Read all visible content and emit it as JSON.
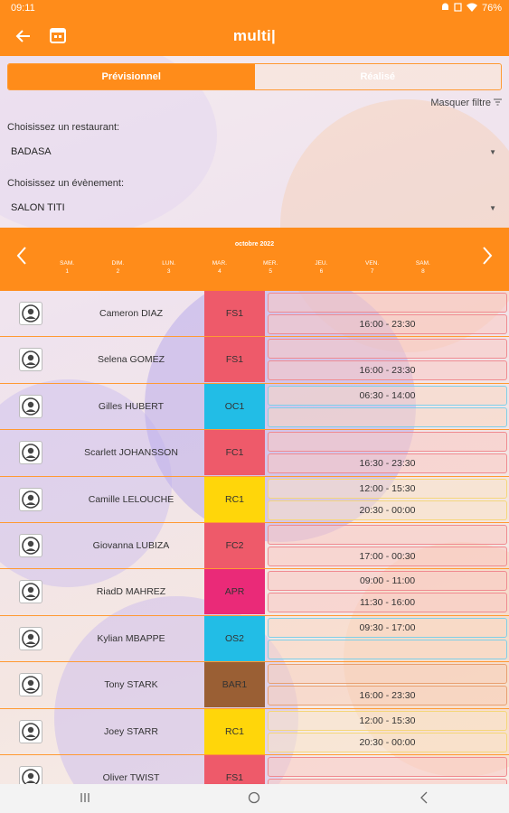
{
  "status_bar": {
    "time": "09:11",
    "battery": "76%"
  },
  "app_bar": {
    "title": "multi|"
  },
  "tabs": [
    {
      "label": "Prévisionnel",
      "active": true
    },
    {
      "label": "Réalisé",
      "active": false
    }
  ],
  "filter_toggle": "Masquer filtre",
  "filters": {
    "restaurant_label": "Choisissez un restaurant:",
    "restaurant_value": "BADASA",
    "event_label": "Choisissez un évènement:",
    "event_value": "SALON TITI"
  },
  "week": {
    "month_label": "octobre 2022",
    "days": [
      {
        "name": "SAM.",
        "num": "1"
      },
      {
        "name": "DIM.",
        "num": "2"
      },
      {
        "name": "LUN.",
        "num": "3"
      },
      {
        "name": "MAR.",
        "num": "4"
      },
      {
        "name": "MER.",
        "num": "5"
      },
      {
        "name": "JEU.",
        "num": "6"
      },
      {
        "name": "VEN.",
        "num": "7"
      },
      {
        "name": "SAM.",
        "num": "8"
      }
    ]
  },
  "colors": {
    "accent": "#ff8c1a",
    "red": "#ee5a6a",
    "cyan": "#22bde6",
    "yellow": "#ffd60a",
    "magenta": "#ea2a78",
    "brown": "#9a5f34"
  },
  "staff": [
    {
      "name": "Cameron DIAZ",
      "poste": "FS1",
      "poste_color": "#ee5a6a",
      "slot_tint": "red",
      "slots": [
        "",
        "16:00 - 23:30"
      ]
    },
    {
      "name": "Selena  GOMEZ",
      "poste": "FS1",
      "poste_color": "#ee5a6a",
      "slot_tint": "red",
      "slots": [
        "",
        "16:00 - 23:30"
      ]
    },
    {
      "name": "Gilles HUBERT",
      "poste": "OC1",
      "poste_color": "#22bde6",
      "slot_tint": "blue",
      "slots": [
        "06:30 - 14:00",
        ""
      ]
    },
    {
      "name": "Scarlett JOHANSSON",
      "poste": "FC1",
      "poste_color": "#ee5a6a",
      "slot_tint": "red",
      "slots": [
        "",
        "16:30 - 23:30"
      ]
    },
    {
      "name": "Camille LELOUCHE",
      "poste": "RC1",
      "poste_color": "#ffd60a",
      "slot_tint": "yellow",
      "slots": [
        "12:00 - 15:30",
        "20:30 - 00:00"
      ]
    },
    {
      "name": "Giovanna  LUBIZA",
      "poste": "FC2",
      "poste_color": "#ee5a6a",
      "slot_tint": "red",
      "slots": [
        "",
        "17:00 - 00:30"
      ]
    },
    {
      "name": "RiadD MAHREZ",
      "poste": "APR",
      "poste_color": "#ea2a78",
      "slot_tint": "red",
      "slots": [
        "09:00 - 11:00",
        "11:30 - 16:00"
      ]
    },
    {
      "name": "Kylian MBAPPE",
      "poste": "OS2",
      "poste_color": "#22bde6",
      "slot_tint": "blue",
      "slots": [
        "09:30 - 17:00",
        ""
      ]
    },
    {
      "name": "Tony STARK",
      "poste": "BAR1",
      "poste_color": "#9a5f34",
      "slot_tint": "brown",
      "slots": [
        "",
        "16:00 - 23:30"
      ]
    },
    {
      "name": "Joey  STARR",
      "poste": "RC1",
      "poste_color": "#ffd60a",
      "slot_tint": "yellow",
      "slots": [
        "12:00 - 15:30",
        "20:30 - 00:00"
      ]
    },
    {
      "name": "Oliver TWIST",
      "poste": "FS1",
      "poste_color": "#ee5a6a",
      "slot_tint": "red",
      "slots": [
        "",
        ""
      ]
    }
  ]
}
